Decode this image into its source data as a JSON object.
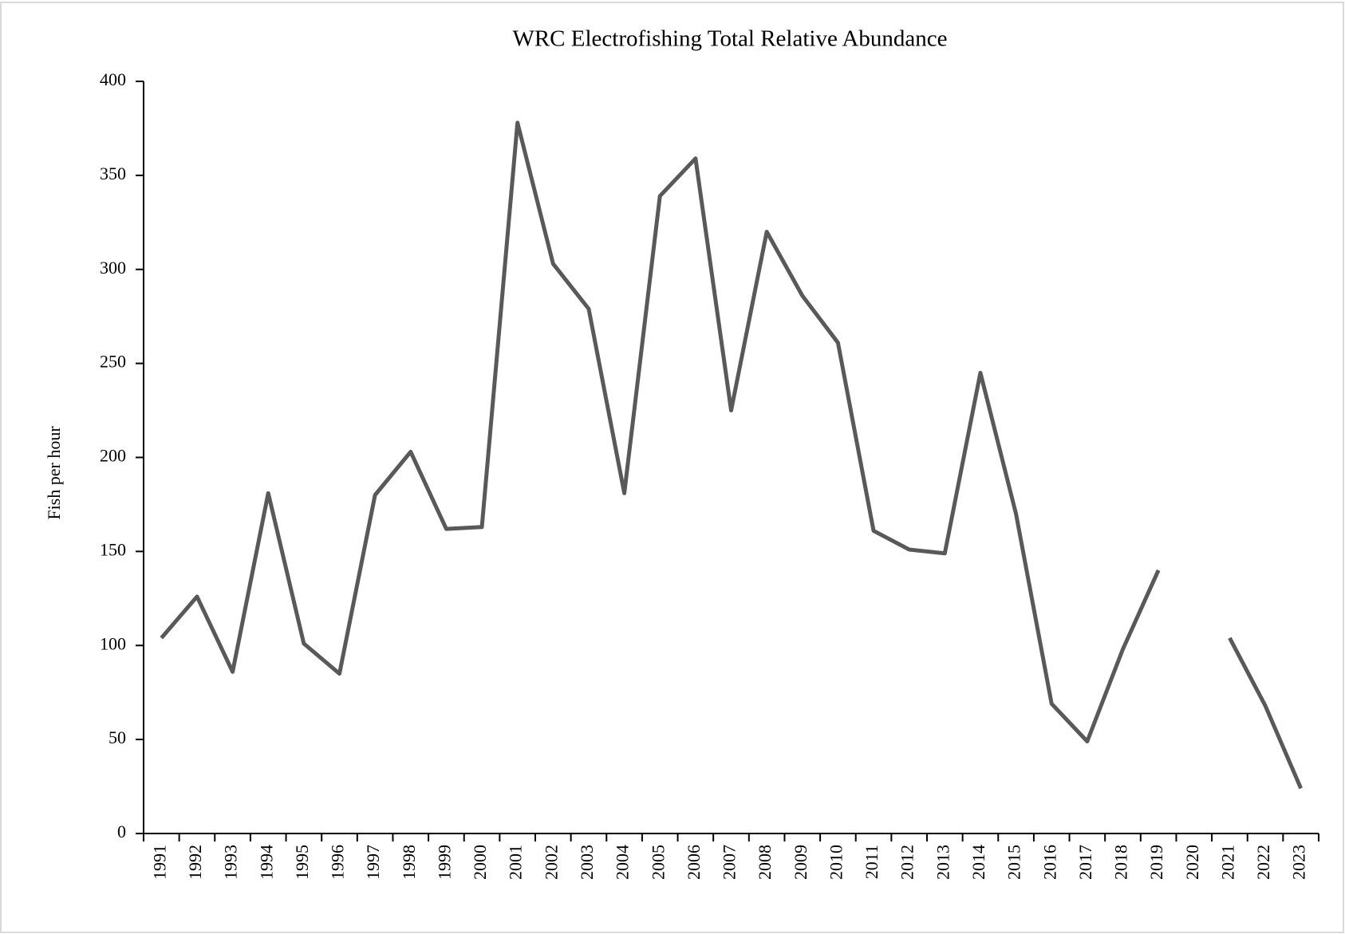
{
  "chart_data": {
    "type": "line",
    "title": "WRC Electrofishing  Total Relative Abundance",
    "y_label": "Fish per hour",
    "categories": [
      "1991",
      "1992",
      "1993",
      "1994",
      "1995",
      "1996",
      "1997",
      "1998",
      "1999",
      "2000",
      "2001",
      "2002",
      "2003",
      "2004",
      "2005",
      "2006",
      "2007",
      "2008",
      "2009",
      "2010",
      "2011",
      "2012",
      "2013",
      "2014",
      "2015",
      "2016",
      "2017",
      "2018",
      "2019",
      "2020",
      "2021",
      "2022",
      "2023"
    ],
    "series": [
      {
        "name": "Fish per hour",
        "color": "#595959",
        "values": [
          104,
          126,
          86,
          181,
          101,
          85,
          180,
          203,
          162,
          163,
          378,
          303,
          279,
          181,
          339,
          359,
          225,
          320,
          286,
          261,
          161,
          151,
          149,
          245,
          170,
          69,
          49,
          98,
          140,
          null,
          104,
          68,
          24
        ]
      }
    ],
    "ylim": [
      0,
      400
    ],
    "yticks": [
      0,
      50,
      100,
      150,
      200,
      250,
      300,
      350,
      400
    ],
    "grid": false
  }
}
